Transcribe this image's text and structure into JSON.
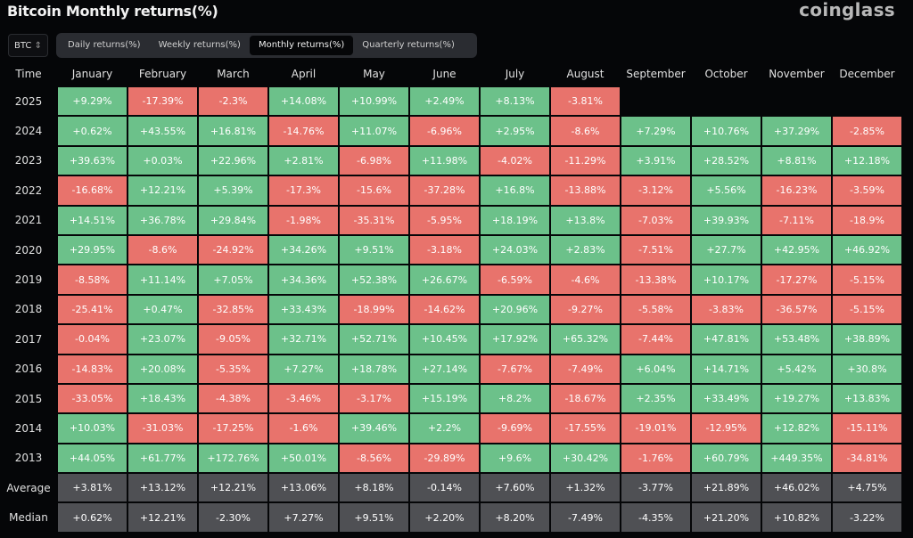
{
  "header": {
    "title": "Bitcoin Monthly returns(%)",
    "logo": "coinglass"
  },
  "toolbar": {
    "asset": "BTC",
    "asset_icon": "up-down-chevron-icon",
    "tabs": [
      "Daily returns(%)",
      "Weekly returns(%)",
      "Monthly returns(%)",
      "Quarterly returns(%)"
    ],
    "active_tab": "Monthly returns(%)"
  },
  "colors": {
    "positive": "#6cc18a",
    "negative": "#e8736c",
    "summary": "#4f5054",
    "background": "#050608"
  },
  "chart_data": {
    "type": "heatmap",
    "title": "Bitcoin Monthly returns(%)",
    "row_header": "Time",
    "columns": [
      "January",
      "February",
      "March",
      "April",
      "May",
      "June",
      "July",
      "August",
      "September",
      "October",
      "November",
      "December"
    ],
    "rows": [
      {
        "label": "2025",
        "values": [
          "+9.29%",
          "-17.39%",
          "-2.3%",
          "+14.08%",
          "+10.99%",
          "+2.49%",
          "+8.13%",
          "-3.81%",
          null,
          null,
          null,
          null
        ]
      },
      {
        "label": "2024",
        "values": [
          "+0.62%",
          "+43.55%",
          "+16.81%",
          "-14.76%",
          "+11.07%",
          "-6.96%",
          "+2.95%",
          "-8.6%",
          "+7.29%",
          "+10.76%",
          "+37.29%",
          "-2.85%"
        ]
      },
      {
        "label": "2023",
        "values": [
          "+39.63%",
          "+0.03%",
          "+22.96%",
          "+2.81%",
          "-6.98%",
          "+11.98%",
          "-4.02%",
          "-11.29%",
          "+3.91%",
          "+28.52%",
          "+8.81%",
          "+12.18%"
        ]
      },
      {
        "label": "2022",
        "values": [
          "-16.68%",
          "+12.21%",
          "+5.39%",
          "-17.3%",
          "-15.6%",
          "-37.28%",
          "+16.8%",
          "-13.88%",
          "-3.12%",
          "+5.56%",
          "-16.23%",
          "-3.59%"
        ]
      },
      {
        "label": "2021",
        "values": [
          "+14.51%",
          "+36.78%",
          "+29.84%",
          "-1.98%",
          "-35.31%",
          "-5.95%",
          "+18.19%",
          "+13.8%",
          "-7.03%",
          "+39.93%",
          "-7.11%",
          "-18.9%"
        ]
      },
      {
        "label": "2020",
        "values": [
          "+29.95%",
          "-8.6%",
          "-24.92%",
          "+34.26%",
          "+9.51%",
          "-3.18%",
          "+24.03%",
          "+2.83%",
          "-7.51%",
          "+27.7%",
          "+42.95%",
          "+46.92%"
        ]
      },
      {
        "label": "2019",
        "values": [
          "-8.58%",
          "+11.14%",
          "+7.05%",
          "+34.36%",
          "+52.38%",
          "+26.67%",
          "-6.59%",
          "-4.6%",
          "-13.38%",
          "+10.17%",
          "-17.27%",
          "-5.15%"
        ]
      },
      {
        "label": "2018",
        "values": [
          "-25.41%",
          "+0.47%",
          "-32.85%",
          "+33.43%",
          "-18.99%",
          "-14.62%",
          "+20.96%",
          "-9.27%",
          "-5.58%",
          "-3.83%",
          "-36.57%",
          "-5.15%"
        ]
      },
      {
        "label": "2017",
        "values": [
          "-0.04%",
          "+23.07%",
          "-9.05%",
          "+32.71%",
          "+52.71%",
          "+10.45%",
          "+17.92%",
          "+65.32%",
          "-7.44%",
          "+47.81%",
          "+53.48%",
          "+38.89%"
        ]
      },
      {
        "label": "2016",
        "values": [
          "-14.83%",
          "+20.08%",
          "-5.35%",
          "+7.27%",
          "+18.78%",
          "+27.14%",
          "-7.67%",
          "-7.49%",
          "+6.04%",
          "+14.71%",
          "+5.42%",
          "+30.8%"
        ]
      },
      {
        "label": "2015",
        "values": [
          "-33.05%",
          "+18.43%",
          "-4.38%",
          "-3.46%",
          "-3.17%",
          "+15.19%",
          "+8.2%",
          "-18.67%",
          "+2.35%",
          "+33.49%",
          "+19.27%",
          "+13.83%"
        ]
      },
      {
        "label": "2014",
        "values": [
          "+10.03%",
          "-31.03%",
          "-17.25%",
          "-1.6%",
          "+39.46%",
          "+2.2%",
          "-9.69%",
          "-17.55%",
          "-19.01%",
          "-12.95%",
          "+12.82%",
          "-15.11%"
        ]
      },
      {
        "label": "2013",
        "values": [
          "+44.05%",
          "+61.77%",
          "+172.76%",
          "+50.01%",
          "-8.56%",
          "-29.89%",
          "+9.6%",
          "+30.42%",
          "-1.76%",
          "+60.79%",
          "+449.35%",
          "-34.81%"
        ]
      }
    ],
    "summary_rows": [
      {
        "label": "Average",
        "values": [
          "+3.81%",
          "+13.12%",
          "+12.21%",
          "+13.06%",
          "+8.18%",
          "-0.14%",
          "+7.60%",
          "+1.32%",
          "-3.77%",
          "+21.89%",
          "+46.02%",
          "+4.75%"
        ]
      },
      {
        "label": "Median",
        "values": [
          "+0.62%",
          "+12.21%",
          "-2.30%",
          "+7.27%",
          "+9.51%",
          "+2.20%",
          "+8.20%",
          "-7.49%",
          "-4.35%",
          "+21.20%",
          "+10.82%",
          "-3.22%"
        ]
      }
    ]
  }
}
